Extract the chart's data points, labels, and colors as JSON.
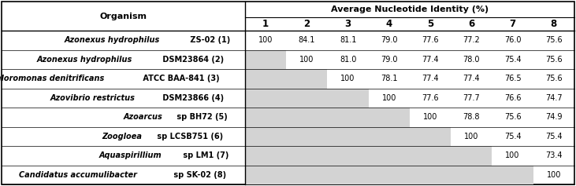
{
  "header_title": "Average Nucleotide Identity (%)",
  "col_header": "Organism",
  "columns": [
    "1",
    "2",
    "3",
    "4",
    "5",
    "6",
    "7",
    "8"
  ],
  "rows": [
    {
      "italic_part": "Azonexus hydrophilus",
      "plain_part": " ZS-02 (1)",
      "values": [
        "100",
        "84.1",
        "81.1",
        "79.0",
        "77.6",
        "77.2",
        "76.0",
        "75.6"
      ],
      "shaded_from": 0
    },
    {
      "italic_part": "Azonexus hydrophilus",
      "plain_part": " DSM23864 (2)",
      "values": [
        "",
        "100",
        "81.0",
        "79.0",
        "77.4",
        "78.0",
        "75.4",
        "75.6"
      ],
      "shaded_from": 1
    },
    {
      "italic_part": "Dechloromonas denitrificans",
      "plain_part": " ATCC BAA-841 (3)",
      "values": [
        "",
        "",
        "100",
        "78.1",
        "77.4",
        "77.4",
        "76.5",
        "75.6"
      ],
      "shaded_from": 2
    },
    {
      "italic_part": "Azovibrio restrictus",
      "plain_part": " DSM23866 (4)",
      "values": [
        "",
        "",
        "",
        "100",
        "77.6",
        "77.7",
        "76.6",
        "74.7"
      ],
      "shaded_from": 3
    },
    {
      "italic_part": "Azoarcus",
      "plain_part": " sp BH72 (5)",
      "values": [
        "",
        "",
        "",
        "",
        "100",
        "78.8",
        "75.6",
        "74.9"
      ],
      "shaded_from": 4
    },
    {
      "italic_part": "Zoogloea",
      "plain_part": " sp LCSB751 (6)",
      "values": [
        "",
        "",
        "",
        "",
        "",
        "100",
        "75.4",
        "75.4"
      ],
      "shaded_from": 5
    },
    {
      "italic_part": "Aquaspirillium",
      "plain_part": " sp LM1 (7)",
      "values": [
        "",
        "",
        "",
        "",
        "",
        "",
        "100",
        "73.4"
      ],
      "shaded_from": 6
    },
    {
      "italic_part": "Candidatus accumulibacter",
      "plain_part": " sp SK-02 (8)",
      "values": [
        "",
        "",
        "",
        "",
        "",
        "",
        "",
        "100"
      ],
      "shaded_from": 7
    }
  ],
  "shade_color": "#d3d3d3",
  "bg_color": "#ffffff",
  "border_color": "#000000",
  "text_color": "#000000",
  "data_font_size": 7.0,
  "header_font_size": 8.0,
  "col_num_font_size": 8.5
}
